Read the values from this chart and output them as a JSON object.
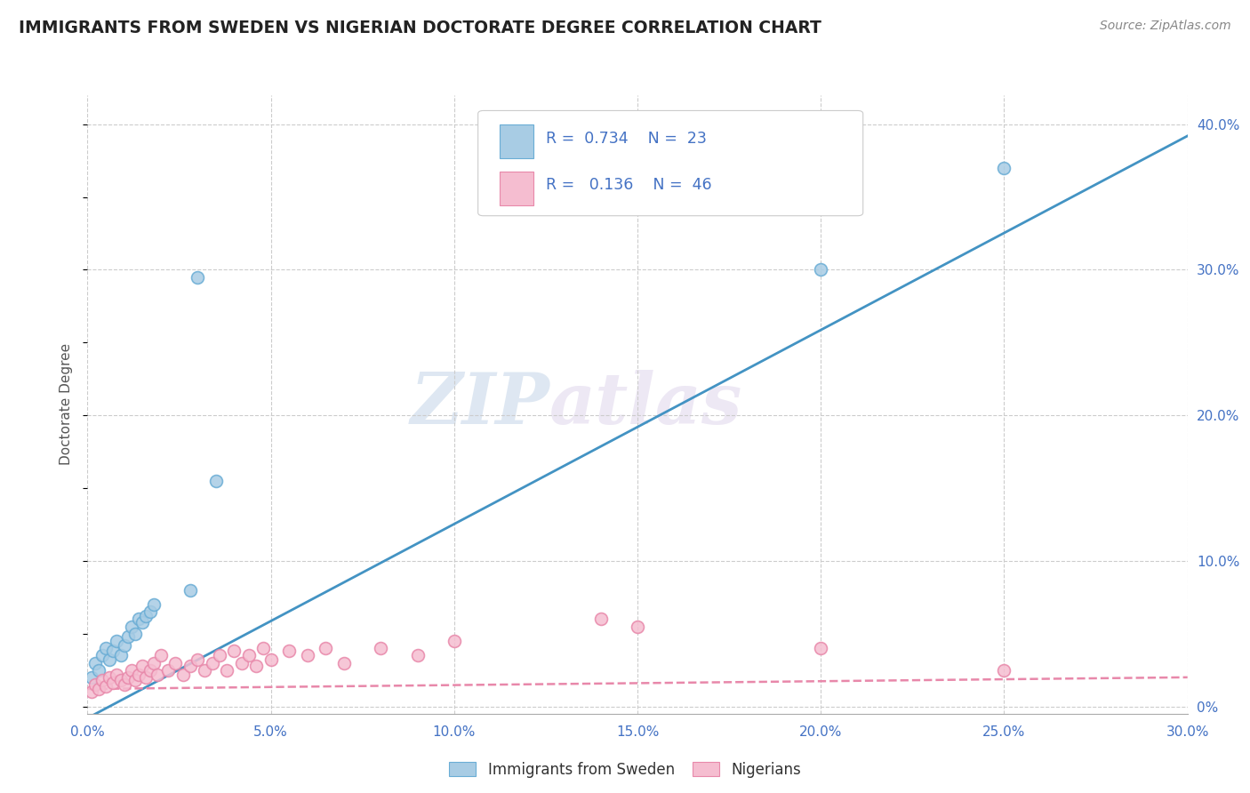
{
  "title": "IMMIGRANTS FROM SWEDEN VS NIGERIAN DOCTORATE DEGREE CORRELATION CHART",
  "source": "Source: ZipAtlas.com",
  "ylabel": "Doctorate Degree",
  "ylabel_right_ticks": [
    "0%",
    "10.0%",
    "20.0%",
    "30.0%",
    "40.0%"
  ],
  "ylabel_right_vals": [
    0.0,
    0.1,
    0.2,
    0.3,
    0.4
  ],
  "xlim": [
    0.0,
    0.3
  ],
  "ylim": [
    -0.005,
    0.42
  ],
  "blue_R": 0.734,
  "blue_N": 23,
  "pink_R": 0.136,
  "pink_N": 46,
  "blue_color": "#a8cce4",
  "blue_edge_color": "#6aadd5",
  "blue_line_color": "#4393c3",
  "pink_color": "#f5bdd0",
  "pink_edge_color": "#e888aa",
  "pink_line_color": "#e888aa",
  "watermark_zip": "ZIP",
  "watermark_atlas": "atlas",
  "legend_label_blue": "Immigrants from Sweden",
  "legend_label_pink": "Nigerians",
  "blue_line_x": [
    0.0,
    0.3
  ],
  "blue_line_y": [
    -0.008,
    0.392
  ],
  "pink_line_x": [
    0.0,
    0.3
  ],
  "pink_line_y": [
    0.012,
    0.02
  ],
  "blue_points_x": [
    0.001,
    0.002,
    0.003,
    0.004,
    0.005,
    0.006,
    0.007,
    0.008,
    0.009,
    0.01,
    0.011,
    0.012,
    0.013,
    0.014,
    0.015,
    0.016,
    0.017,
    0.018,
    0.03,
    0.035,
    0.2,
    0.25,
    0.028
  ],
  "blue_points_y": [
    0.02,
    0.03,
    0.025,
    0.035,
    0.04,
    0.032,
    0.038,
    0.045,
    0.035,
    0.042,
    0.048,
    0.055,
    0.05,
    0.06,
    0.058,
    0.062,
    0.065,
    0.07,
    0.295,
    0.155,
    0.3,
    0.37,
    0.08
  ],
  "pink_points_x": [
    0.001,
    0.002,
    0.003,
    0.004,
    0.005,
    0.006,
    0.007,
    0.008,
    0.009,
    0.01,
    0.011,
    0.012,
    0.013,
    0.014,
    0.015,
    0.016,
    0.017,
    0.018,
    0.019,
    0.02,
    0.022,
    0.024,
    0.026,
    0.028,
    0.03,
    0.032,
    0.034,
    0.036,
    0.038,
    0.04,
    0.042,
    0.044,
    0.046,
    0.048,
    0.05,
    0.055,
    0.06,
    0.065,
    0.07,
    0.08,
    0.09,
    0.1,
    0.14,
    0.15,
    0.2,
    0.25
  ],
  "pink_points_y": [
    0.01,
    0.015,
    0.012,
    0.018,
    0.014,
    0.02,
    0.016,
    0.022,
    0.018,
    0.015,
    0.02,
    0.025,
    0.018,
    0.022,
    0.028,
    0.02,
    0.025,
    0.03,
    0.022,
    0.035,
    0.025,
    0.03,
    0.022,
    0.028,
    0.032,
    0.025,
    0.03,
    0.035,
    0.025,
    0.038,
    0.03,
    0.035,
    0.028,
    0.04,
    0.032,
    0.038,
    0.035,
    0.04,
    0.03,
    0.04,
    0.035,
    0.045,
    0.06,
    0.055,
    0.04,
    0.025
  ],
  "grid_color": "#cccccc",
  "background_color": "#ffffff",
  "x_grid_vals": [
    0.0,
    0.05,
    0.1,
    0.15,
    0.2,
    0.25,
    0.3
  ],
  "x_tick_labels": [
    "0.0%",
    "5.0%",
    "10.0%",
    "15.0%",
    "20.0%",
    "25.0%",
    "30.0%"
  ]
}
